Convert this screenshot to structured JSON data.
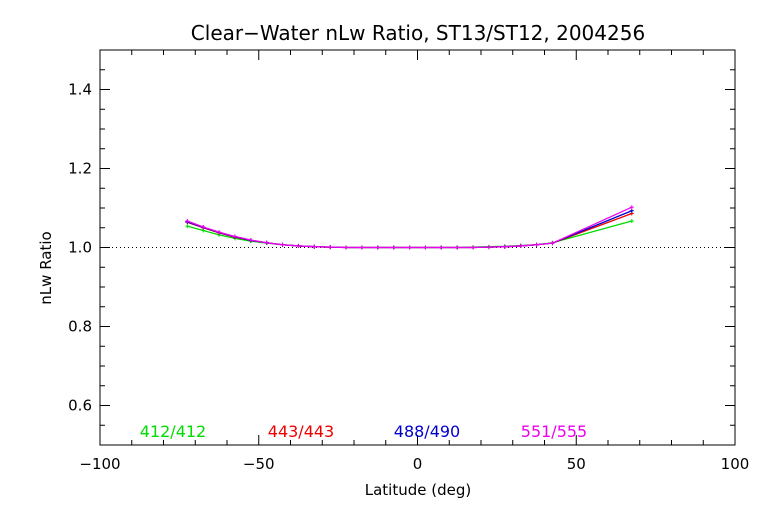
{
  "chart_data": {
    "type": "line",
    "title": "Clear−Water nLw Ratio, ST13/ST12, 2004256",
    "xlabel": "Latitude (deg)",
    "ylabel": "nLw Ratio",
    "xlim": [
      -100,
      100
    ],
    "ylim": [
      0.5,
      1.5
    ],
    "x_ticks": [
      -100,
      -50,
      0,
      50,
      100
    ],
    "x_tick_labels": [
      "−100",
      "−50",
      "0",
      "50",
      "100"
    ],
    "y_ticks": [
      0.6,
      0.8,
      1.0,
      1.2,
      1.4
    ],
    "y_tick_labels": [
      "0.6",
      "0.8",
      "1.0",
      "1.2",
      "1.4"
    ],
    "reference_line": {
      "y": 1.0,
      "style": "dotted"
    },
    "x": [
      -72.5,
      -67.5,
      -62.5,
      -57.5,
      -52.5,
      -47.5,
      -42.5,
      -37.5,
      -32.5,
      -27.5,
      -22.5,
      -17.5,
      -12.5,
      -7.5,
      -2.5,
      2.5,
      7.5,
      12.5,
      17.5,
      22.5,
      27.5,
      32.5,
      37.5,
      42.5,
      67.5
    ],
    "series": [
      {
        "name": "412/412",
        "color": "#00dd00",
        "values": [
          1.054,
          1.043,
          1.032,
          1.023,
          1.016,
          1.011,
          1.007,
          1.004,
          1.002,
          1.001,
          1.0,
          1.0,
          1.0,
          1.0,
          1.0,
          1.0,
          1.0,
          1.0,
          1.001,
          1.002,
          1.003,
          1.005,
          1.007,
          1.012,
          1.067
        ]
      },
      {
        "name": "443/443",
        "color": "#ee0000",
        "values": [
          1.064,
          1.05,
          1.037,
          1.026,
          1.018,
          1.012,
          1.007,
          1.004,
          1.002,
          1.001,
          1.0,
          1.0,
          1.0,
          1.0,
          1.0,
          1.0,
          1.0,
          1.0,
          1.0,
          1.001,
          1.002,
          1.004,
          1.007,
          1.011,
          1.086
        ]
      },
      {
        "name": "488/490",
        "color": "#0000cc",
        "values": [
          1.065,
          1.051,
          1.038,
          1.027,
          1.018,
          1.012,
          1.007,
          1.004,
          1.002,
          1.001,
          1.0,
          1.0,
          1.0,
          1.0,
          1.0,
          1.0,
          1.0,
          1.0,
          1.0,
          1.001,
          1.002,
          1.004,
          1.007,
          1.011,
          1.093
        ]
      },
      {
        "name": "551/555",
        "color": "#ee00ee",
        "values": [
          1.067,
          1.052,
          1.039,
          1.028,
          1.019,
          1.012,
          1.007,
          1.004,
          1.002,
          1.001,
          1.0,
          1.0,
          1.0,
          1.0,
          1.0,
          1.0,
          1.0,
          1.0,
          1.0,
          1.001,
          1.002,
          1.004,
          1.007,
          1.011,
          1.102
        ]
      }
    ],
    "legend_placement": "bottom inside plot"
  }
}
